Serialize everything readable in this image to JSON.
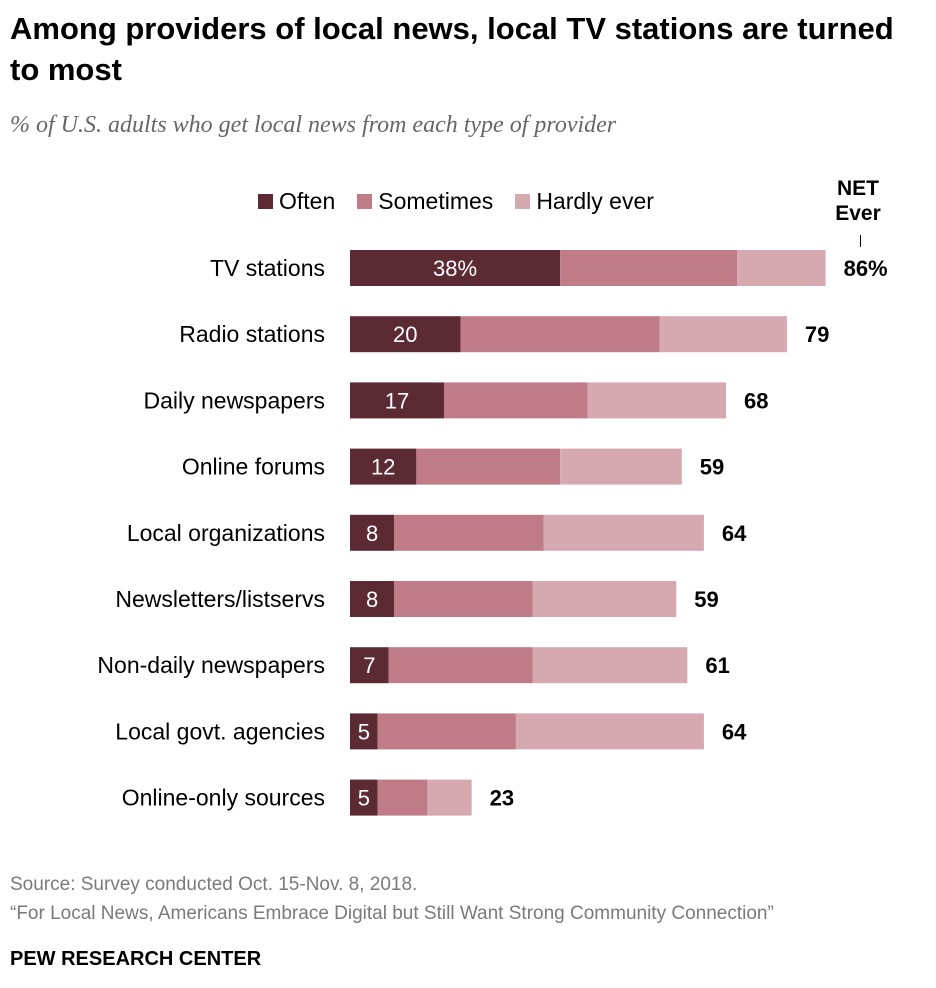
{
  "title": "Among providers of local news, local TV stations are turned to most",
  "subtitle": "% of U.S. adults who get local news from each type of provider",
  "legend": {
    "often": "Often",
    "sometimes": "Sometimes",
    "hardly": "Hardly ever"
  },
  "net_header": "NET Ever",
  "colors": {
    "often": "#5c2a33",
    "sometimes": "#bf7b87",
    "hardly": "#d6a8b0"
  },
  "chart_data": {
    "type": "bar",
    "orientation": "horizontal",
    "stacked": true,
    "categories": [
      "TV stations",
      "Radio stations",
      "Daily newspapers",
      "Online forums",
      "Local organizations",
      "Newsletters/listservs",
      "Non-daily newspapers",
      "Local govt. agencies",
      "Online-only sources"
    ],
    "series": [
      {
        "name": "Often",
        "values": [
          38,
          20,
          17,
          12,
          8,
          8,
          7,
          5,
          5
        ]
      },
      {
        "name": "Sometimes",
        "values": [
          32,
          36,
          26,
          26,
          27,
          25,
          26,
          25,
          9
        ]
      },
      {
        "name": "Hardly ever",
        "values": [
          16,
          23,
          25,
          22,
          29,
          26,
          28,
          34,
          8
        ]
      }
    ],
    "net": [
      86,
      79,
      68,
      59,
      64,
      59,
      61,
      64,
      23
    ],
    "often_labels": [
      "38%",
      "20",
      "17",
      "12",
      "8",
      "8",
      "7",
      "5",
      "5"
    ],
    "net_labels": [
      "86%",
      "79",
      "68",
      "59",
      "64",
      "59",
      "61",
      "64",
      "23"
    ],
    "xlim": [
      0,
      100
    ]
  },
  "source": "Source: Survey conducted Oct. 15-Nov. 8, 2018.",
  "report": "“For Local News, Americans Embrace Digital but Still Want Strong Community Connection”",
  "brand": "PEW RESEARCH CENTER"
}
